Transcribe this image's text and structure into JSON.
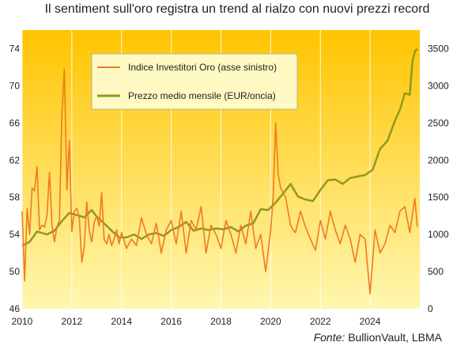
{
  "chart_data": {
    "type": "line",
    "title": "Il sentiment sull'oro registra un trend al rialzo con nuovi prezzi record",
    "source_prefix": "Fonte:",
    "source_name": "BullionVault, LBMA",
    "x_range": [
      2010,
      2026
    ],
    "x_ticks": [
      "2010",
      "2012",
      "2014",
      "2016",
      "2018",
      "2020",
      "2022",
      "2024"
    ],
    "y_left": {
      "range": [
        46,
        76
      ],
      "ticks": [
        46,
        50,
        54,
        58,
        62,
        66,
        70,
        74
      ]
    },
    "y_right": {
      "range": [
        0,
        3750
      ],
      "ticks": [
        0,
        500,
        1000,
        1500,
        2000,
        2500,
        3000,
        3500
      ]
    },
    "legend_position": "top-left",
    "background_gradient": [
      "#ffc400",
      "#fff7b0"
    ],
    "series": [
      {
        "name": "Indice Investitori Oro (asse sinistro)",
        "axis": "left",
        "color": "#f07a22",
        "x": [
          2010.0,
          2010.1,
          2010.2,
          2010.3,
          2010.4,
          2010.5,
          2010.6,
          2010.7,
          2010.8,
          2010.9,
          2011.0,
          2011.1,
          2011.2,
          2011.3,
          2011.4,
          2011.5,
          2011.6,
          2011.7,
          2011.8,
          2011.9,
          2012.0,
          2012.1,
          2012.2,
          2012.3,
          2012.4,
          2012.5,
          2012.6,
          2012.7,
          2012.8,
          2012.9,
          2013.0,
          2013.1,
          2013.2,
          2013.3,
          2013.4,
          2013.5,
          2013.6,
          2013.7,
          2013.8,
          2013.9,
          2014.0,
          2014.2,
          2014.4,
          2014.6,
          2014.8,
          2015.0,
          2015.2,
          2015.4,
          2015.6,
          2015.8,
          2016.0,
          2016.2,
          2016.4,
          2016.6,
          2016.8,
          2017.0,
          2017.2,
          2017.4,
          2017.6,
          2017.8,
          2018.0,
          2018.2,
          2018.4,
          2018.6,
          2018.8,
          2019.0,
          2019.2,
          2019.4,
          2019.6,
          2019.8,
          2020.0,
          2020.1,
          2020.2,
          2020.3,
          2020.4,
          2020.5,
          2020.6,
          2020.7,
          2020.8,
          2020.9,
          2021.0,
          2021.2,
          2021.4,
          2021.6,
          2021.8,
          2022.0,
          2022.2,
          2022.4,
          2022.6,
          2022.8,
          2023.0,
          2023.2,
          2023.4,
          2023.6,
          2023.8,
          2024.0,
          2024.2,
          2024.4,
          2024.6,
          2024.8,
          2025.0,
          2025.2,
          2025.4,
          2025.6,
          2025.8,
          2025.9
        ],
        "y": [
          56.5,
          49.0,
          56.8,
          54.0,
          59.0,
          58.7,
          61.3,
          54.5,
          55.0,
          54.8,
          56.0,
          60.7,
          55.0,
          53.2,
          54.8,
          55.5,
          67.0,
          71.8,
          58.8,
          64.1,
          54.3,
          56.5,
          56.8,
          55.8,
          51.0,
          52.7,
          57.5,
          54.5,
          53.2,
          55.3,
          56.0,
          54.9,
          58.5,
          53.5,
          53.0,
          54.0,
          52.8,
          53.5,
          54.5,
          53.0,
          54.2,
          52.5,
          53.5,
          52.8,
          55.8,
          54.0,
          53.0,
          55.2,
          52.0,
          54.5,
          55.5,
          53.0,
          56.5,
          52.0,
          55.5,
          54.5,
          57.0,
          52.0,
          55.0,
          54.0,
          52.5,
          55.5,
          54.0,
          52.0,
          55.0,
          53.0,
          56.5,
          52.5,
          54.0,
          50.0,
          54.5,
          58.0,
          66.0,
          60.5,
          59.0,
          58.5,
          58.0,
          56.5,
          55.0,
          54.5,
          54.2,
          56.5,
          54.8,
          53.5,
          52.3,
          55.5,
          53.5,
          56.5,
          54.5,
          53.0,
          55.0,
          53.5,
          51.0,
          54.0,
          53.5,
          47.6,
          54.5,
          52.0,
          53.0,
          55.0,
          54.2,
          56.5,
          57.0,
          54.2,
          57.9,
          54.8
        ]
      },
      {
        "name": "Prezzo medio mensile (EUR/oncia)",
        "axis": "right",
        "color": "#8f9a1e",
        "x": [
          2010.0,
          2010.3,
          2010.6,
          2011.0,
          2011.3,
          2011.6,
          2011.9,
          2012.2,
          2012.5,
          2012.8,
          2013.0,
          2013.3,
          2013.6,
          2013.9,
          2014.2,
          2014.5,
          2014.8,
          2015.1,
          2015.4,
          2015.7,
          2016.0,
          2016.3,
          2016.6,
          2016.9,
          2017.2,
          2017.5,
          2017.8,
          2018.1,
          2018.4,
          2018.7,
          2019.0,
          2019.3,
          2019.6,
          2019.9,
          2020.2,
          2020.5,
          2020.8,
          2021.1,
          2021.4,
          2021.7,
          2022.0,
          2022.3,
          2022.6,
          2022.9,
          2023.2,
          2023.5,
          2023.8,
          2024.1,
          2024.4,
          2024.7,
          2025.0,
          2025.2,
          2025.4,
          2025.6,
          2025.7,
          2025.8,
          2025.9
        ],
        "y": [
          850,
          900,
          1040,
          1000,
          1050,
          1180,
          1290,
          1260,
          1230,
          1330,
          1240,
          1150,
          1050,
          960,
          960,
          1000,
          940,
          1000,
          1020,
          980,
          1060,
          1100,
          1170,
          1050,
          1080,
          1060,
          1080,
          1070,
          1100,
          1040,
          1120,
          1150,
          1340,
          1330,
          1430,
          1550,
          1680,
          1510,
          1470,
          1450,
          1600,
          1730,
          1740,
          1680,
          1760,
          1780,
          1800,
          1870,
          2150,
          2260,
          2530,
          2680,
          2900,
          2880,
          3320,
          3460,
          3500
        ]
      }
    ]
  }
}
